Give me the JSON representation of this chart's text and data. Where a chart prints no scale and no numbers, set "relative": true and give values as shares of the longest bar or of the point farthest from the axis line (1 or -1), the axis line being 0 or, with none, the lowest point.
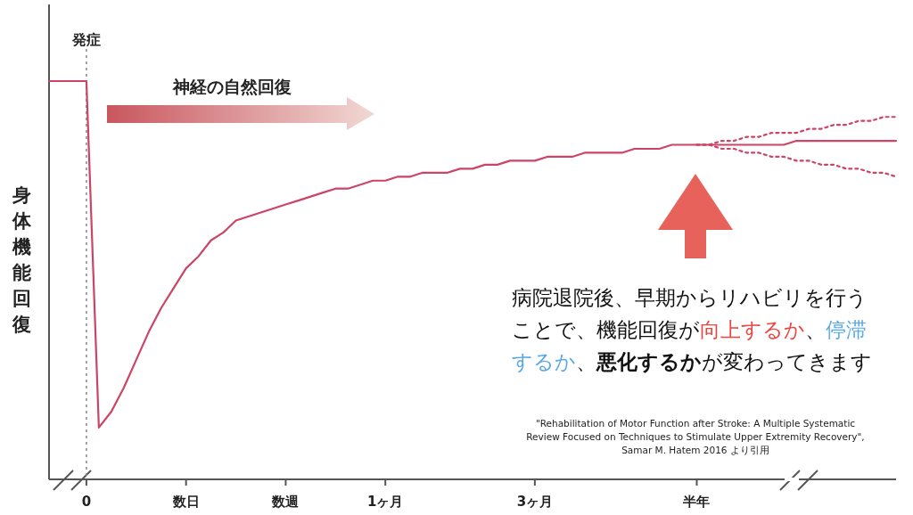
{
  "chart_data": {
    "type": "line",
    "relative": true,
    "ylabel": "身体機能回復",
    "categories": [
      null,
      null,
      null,
      "0",
      null,
      null,
      null,
      null,
      null,
      null,
      null,
      "数日",
      null,
      null,
      null,
      null,
      null,
      null,
      null,
      "数週",
      null,
      null,
      null,
      null,
      null,
      null,
      null,
      "1ヶ月",
      null,
      null,
      null,
      null,
      null,
      null,
      null,
      null,
      null,
      null,
      null,
      "3ヶ月",
      null,
      null,
      null,
      null,
      null,
      null,
      null,
      null,
      null,
      null,
      null,
      null,
      "半年",
      null,
      null,
      null,
      null,
      null,
      null,
      null,
      null,
      null,
      null,
      null,
      null,
      null,
      null,
      null,
      null
    ],
    "series": [
      {
        "color": "#cc4466",
        "line_style": "solid",
        "values": [
          1.0,
          1.0,
          1.0,
          1.0,
          0.13,
          0.17,
          0.23,
          0.3,
          0.37,
          0.43,
          0.48,
          0.53,
          0.56,
          0.6,
          0.62,
          0.65,
          0.66,
          0.67,
          0.68,
          0.69,
          0.7,
          0.71,
          0.72,
          0.73,
          0.73,
          0.74,
          0.75,
          0.75,
          0.76,
          0.76,
          0.77,
          0.77,
          0.77,
          0.78,
          0.78,
          0.79,
          0.79,
          0.8,
          0.8,
          0.8,
          0.81,
          0.81,
          0.81,
          0.82,
          0.82,
          0.82,
          0.82,
          0.83,
          0.83,
          0.83,
          0.84,
          0.84,
          0.84,
          0.84,
          0.84,
          0.84,
          0.84,
          0.84,
          0.84,
          0.84,
          0.85,
          0.85,
          0.85,
          0.85,
          0.85,
          0.85,
          0.85,
          0.85,
          0.85
        ]
      },
      {
        "color": "#cc4466",
        "line_style": "dotted",
        "values": [
          null,
          null,
          null,
          null,
          null,
          null,
          null,
          null,
          null,
          null,
          null,
          null,
          null,
          null,
          null,
          null,
          null,
          null,
          null,
          null,
          null,
          null,
          null,
          null,
          null,
          null,
          null,
          null,
          null,
          null,
          null,
          null,
          null,
          null,
          null,
          null,
          null,
          null,
          null,
          null,
          null,
          null,
          null,
          null,
          null,
          null,
          null,
          null,
          null,
          null,
          null,
          null,
          0.84,
          0.84,
          0.85,
          0.85,
          0.86,
          0.86,
          0.87,
          0.87,
          0.87,
          0.88,
          0.88,
          0.89,
          0.89,
          0.9,
          0.9,
          0.91,
          0.91
        ]
      },
      {
        "color": "#cc4466",
        "line_style": "dotted",
        "values": [
          null,
          null,
          null,
          null,
          null,
          null,
          null,
          null,
          null,
          null,
          null,
          null,
          null,
          null,
          null,
          null,
          null,
          null,
          null,
          null,
          null,
          null,
          null,
          null,
          null,
          null,
          null,
          null,
          null,
          null,
          null,
          null,
          null,
          null,
          null,
          null,
          null,
          null,
          null,
          null,
          null,
          null,
          null,
          null,
          null,
          null,
          null,
          null,
          null,
          null,
          null,
          null,
          0.84,
          0.84,
          0.83,
          0.83,
          0.82,
          0.82,
          0.81,
          0.81,
          0.8,
          0.8,
          0.79,
          0.79,
          0.78,
          0.78,
          0.77,
          0.77,
          0.76
        ]
      }
    ],
    "ref_lines": [
      {
        "axis": "x",
        "value": "0",
        "label": "発症",
        "color": "#888888",
        "line_style": "dotted"
      }
    ],
    "annotations": [
      "神経の自然回復",
      "病院退院後、早期からリハビリを行うことで、機能回復が",
      "向上するか",
      "、",
      "停滞するか",
      "、",
      "**悪化するか**",
      "が変わってきます",
      "\"Rehabilitation of Motor Function after Stroke: A Multiple Systematic Review Focused on Techniques to Stimulate Upper Extremity Recovery\", Samar M. Hatem 2016 より引用"
    ]
  }
}
